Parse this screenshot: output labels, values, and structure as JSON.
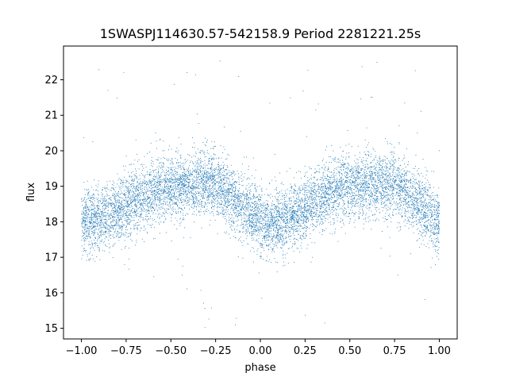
{
  "chart_data": {
    "type": "scatter",
    "title": "1SWASPJ114630.57-542158.9 Period 2281221.25s",
    "xlabel": "phase",
    "ylabel": "flux",
    "xlim": [
      -1.1,
      1.1
    ],
    "ylim": [
      14.7,
      22.95
    ],
    "xticks": [
      -1.0,
      -0.75,
      -0.5,
      -0.25,
      0.0,
      0.25,
      0.5,
      0.75,
      1.0
    ],
    "xtick_labels": [
      "−1.00",
      "−0.75",
      "−0.50",
      "−0.25",
      "0.00",
      "0.25",
      "0.50",
      "0.75",
      "1.00"
    ],
    "yticks": [
      15,
      16,
      17,
      18,
      19,
      20,
      21,
      22
    ],
    "ytick_labels": [
      "15",
      "16",
      "17",
      "18",
      "19",
      "20",
      "21",
      "22"
    ],
    "grid": false,
    "marker_color": "#1f77b4",
    "series": [
      {
        "x_range": [
          -1.0,
          1.0
        ],
        "trend": {
          "phase": [
            -1.0,
            -0.9,
            -0.8,
            -0.7,
            -0.6,
            -0.5,
            -0.4,
            -0.3,
            -0.25,
            -0.2,
            -0.1,
            0.0,
            0.05,
            0.1,
            0.2,
            0.3,
            0.4,
            0.5,
            0.6,
            0.7,
            0.75,
            0.8,
            0.9,
            1.0
          ],
          "flux": [
            18.0,
            18.1,
            18.3,
            18.6,
            18.85,
            19.0,
            19.0,
            19.1,
            19.1,
            18.9,
            18.4,
            18.0,
            17.9,
            18.0,
            18.2,
            18.5,
            18.85,
            19.0,
            19.0,
            19.1,
            19.1,
            18.9,
            18.4,
            18.0
          ]
        },
        "scatter_spread": 0.75,
        "outlier_range": [
          15.0,
          22.6
        ],
        "point_count": 9000
      }
    ]
  }
}
